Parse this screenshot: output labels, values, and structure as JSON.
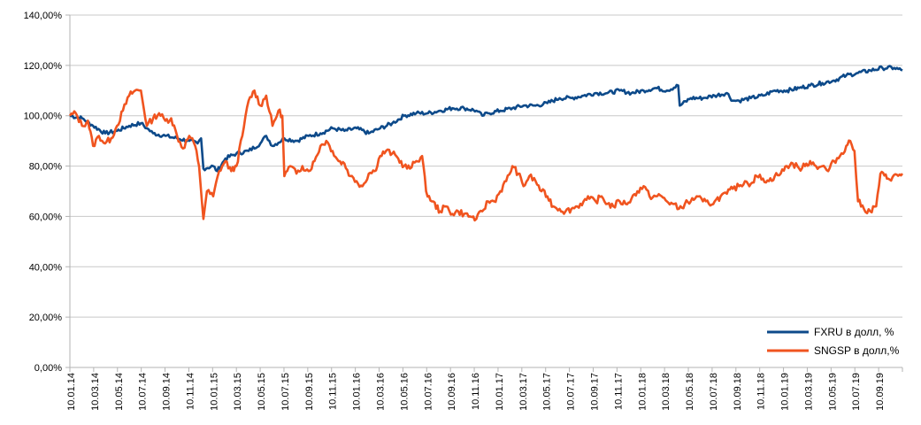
{
  "chart_data": {
    "type": "line",
    "title": "",
    "xlabel": "",
    "ylabel": "",
    "ylim": [
      0,
      140
    ],
    "y_tick_values": [
      0,
      20,
      40,
      60,
      80,
      100,
      120,
      140
    ],
    "y_tick_labels": [
      "0,00%",
      "20,00%",
      "40,00%",
      "60,00%",
      "80,00%",
      "100,00%",
      "120,00%",
      "140,00%"
    ],
    "x_tick_labels": [
      "10.01.14",
      "10.03.14",
      "10.05.14",
      "10.07.14",
      "10.09.14",
      "10.11.14",
      "10.01.15",
      "10.03.15",
      "10.05.15",
      "10.07.15",
      "10.09.15",
      "10.11.15",
      "10.01.16",
      "10.03.16",
      "10.05.16",
      "10.07.16",
      "10.09.16",
      "10.11.16",
      "10.01.17",
      "10.03.17",
      "10.05.17",
      "10.07.17",
      "10.09.17",
      "10.11.17",
      "10.01.18",
      "10.03.18",
      "10.05.18",
      "10.07.18",
      "10.09.18",
      "10.11.18",
      "10.01.19",
      "10.03.19",
      "10.05.19",
      "10.07.19",
      "10.09.19"
    ],
    "x_range": [
      "2014-01-10",
      "2019-10-31"
    ],
    "grid": "horizontal",
    "legend_position": "bottom-right",
    "series": [
      {
        "name": "FXRU в долл, %",
        "color": "#0d4a8a",
        "points": [
          [
            "2014-01-10",
            100
          ],
          [
            "2014-02-10",
            99
          ],
          [
            "2014-03-10",
            96
          ],
          [
            "2014-04-10",
            93
          ],
          [
            "2014-05-10",
            94
          ],
          [
            "2014-06-10",
            96
          ],
          [
            "2014-07-10",
            97
          ],
          [
            "2014-07-25",
            95
          ],
          [
            "2014-08-10",
            93
          ],
          [
            "2014-09-10",
            92
          ],
          [
            "2014-10-10",
            91
          ],
          [
            "2014-11-10",
            90
          ],
          [
            "2014-12-01",
            89
          ],
          [
            "2014-12-10",
            91
          ],
          [
            "2014-12-16",
            79
          ],
          [
            "2015-01-10",
            80
          ],
          [
            "2015-01-20",
            78
          ],
          [
            "2015-02-10",
            83
          ],
          [
            "2015-03-10",
            85
          ],
          [
            "2015-04-10",
            86
          ],
          [
            "2015-05-10",
            89
          ],
          [
            "2015-05-25",
            92
          ],
          [
            "2015-06-10",
            88
          ],
          [
            "2015-07-10",
            91
          ],
          [
            "2015-08-10",
            90
          ],
          [
            "2015-09-10",
            92
          ],
          [
            "2015-10-10",
            93
          ],
          [
            "2015-11-10",
            95
          ],
          [
            "2015-12-10",
            94
          ],
          [
            "2016-01-10",
            95
          ],
          [
            "2016-02-10",
            93
          ],
          [
            "2016-03-10",
            95
          ],
          [
            "2016-04-10",
            97
          ],
          [
            "2016-05-10",
            100
          ],
          [
            "2016-06-10",
            101
          ],
          [
            "2016-07-10",
            101
          ],
          [
            "2016-08-10",
            102
          ],
          [
            "2016-09-10",
            103
          ],
          [
            "2016-10-10",
            103
          ],
          [
            "2016-11-10",
            102
          ],
          [
            "2016-11-25",
            100
          ],
          [
            "2016-12-10",
            101
          ],
          [
            "2017-01-10",
            102
          ],
          [
            "2017-02-10",
            103
          ],
          [
            "2017-03-10",
            104
          ],
          [
            "2017-04-10",
            104
          ],
          [
            "2017-05-10",
            105
          ],
          [
            "2017-06-10",
            107
          ],
          [
            "2017-07-10",
            107
          ],
          [
            "2017-08-10",
            108
          ],
          [
            "2017-09-10",
            109
          ],
          [
            "2017-10-10",
            109
          ],
          [
            "2017-11-10",
            110
          ],
          [
            "2017-12-10",
            109
          ],
          [
            "2018-01-10",
            110
          ],
          [
            "2018-02-10",
            111
          ],
          [
            "2018-03-10",
            110
          ],
          [
            "2018-04-08",
            112
          ],
          [
            "2018-04-12",
            104
          ],
          [
            "2018-05-10",
            107
          ],
          [
            "2018-06-10",
            107
          ],
          [
            "2018-07-10",
            108
          ],
          [
            "2018-08-10",
            109
          ],
          [
            "2018-08-25",
            106
          ],
          [
            "2018-09-10",
            106
          ],
          [
            "2018-10-10",
            107
          ],
          [
            "2018-11-10",
            108
          ],
          [
            "2018-12-10",
            110
          ],
          [
            "2019-01-10",
            110
          ],
          [
            "2019-02-10",
            111
          ],
          [
            "2019-03-10",
            112
          ],
          [
            "2019-04-10",
            113
          ],
          [
            "2019-05-10",
            114
          ],
          [
            "2019-06-10",
            116
          ],
          [
            "2019-07-10",
            117
          ],
          [
            "2019-08-10",
            118
          ],
          [
            "2019-09-10",
            119
          ],
          [
            "2019-10-10",
            119
          ],
          [
            "2019-10-31",
            118
          ]
        ]
      },
      {
        "name": "SNGSP в долл,%",
        "color": "#f0541f",
        "points": [
          [
            "2014-01-10",
            100
          ],
          [
            "2014-01-25",
            101
          ],
          [
            "2014-02-10",
            96
          ],
          [
            "2014-02-25",
            98
          ],
          [
            "2014-03-10",
            88
          ],
          [
            "2014-03-25",
            92
          ],
          [
            "2014-04-10",
            89
          ],
          [
            "2014-04-25",
            91
          ],
          [
            "2014-05-10",
            96
          ],
          [
            "2014-05-25",
            102
          ],
          [
            "2014-06-10",
            108
          ],
          [
            "2014-06-25",
            110
          ],
          [
            "2014-07-10",
            110
          ],
          [
            "2014-07-25",
            96
          ],
          [
            "2014-08-10",
            99
          ],
          [
            "2014-08-25",
            101
          ],
          [
            "2014-09-10",
            98
          ],
          [
            "2014-09-25",
            99
          ],
          [
            "2014-10-10",
            92
          ],
          [
            "2014-10-25",
            87
          ],
          [
            "2014-11-10",
            92
          ],
          [
            "2014-11-25",
            88
          ],
          [
            "2014-12-05",
            80
          ],
          [
            "2014-12-16",
            59
          ],
          [
            "2014-12-25",
            70
          ],
          [
            "2015-01-10",
            68
          ],
          [
            "2015-01-25",
            78
          ],
          [
            "2015-02-10",
            82
          ],
          [
            "2015-02-25",
            78
          ],
          [
            "2015-03-10",
            80
          ],
          [
            "2015-03-25",
            92
          ],
          [
            "2015-04-10",
            106
          ],
          [
            "2015-04-25",
            110
          ],
          [
            "2015-05-10",
            104
          ],
          [
            "2015-05-25",
            108
          ],
          [
            "2015-06-10",
            96
          ],
          [
            "2015-06-25",
            102
          ],
          [
            "2015-07-05",
            100
          ],
          [
            "2015-07-10",
            76
          ],
          [
            "2015-07-25",
            80
          ],
          [
            "2015-08-10",
            77
          ],
          [
            "2015-08-25",
            80
          ],
          [
            "2015-09-10",
            78
          ],
          [
            "2015-09-25",
            82
          ],
          [
            "2015-10-10",
            88
          ],
          [
            "2015-10-25",
            90
          ],
          [
            "2015-11-10",
            86
          ],
          [
            "2015-11-25",
            82
          ],
          [
            "2015-12-10",
            81
          ],
          [
            "2015-12-25",
            76
          ],
          [
            "2016-01-10",
            74
          ],
          [
            "2016-01-25",
            72
          ],
          [
            "2016-02-10",
            77
          ],
          [
            "2016-02-25",
            78
          ],
          [
            "2016-03-10",
            84
          ],
          [
            "2016-03-25",
            86
          ],
          [
            "2016-04-10",
            85
          ],
          [
            "2016-04-25",
            83
          ],
          [
            "2016-05-10",
            80
          ],
          [
            "2016-05-25",
            79
          ],
          [
            "2016-06-10",
            82
          ],
          [
            "2016-06-25",
            84
          ],
          [
            "2016-07-05",
            70
          ],
          [
            "2016-07-20",
            66
          ],
          [
            "2016-08-10",
            62
          ],
          [
            "2016-08-25",
            64
          ],
          [
            "2016-09-10",
            61
          ],
          [
            "2016-09-25",
            62
          ],
          [
            "2016-10-10",
            61
          ],
          [
            "2016-10-25",
            60
          ],
          [
            "2016-11-10",
            59
          ],
          [
            "2016-11-25",
            62
          ],
          [
            "2016-12-10",
            66
          ],
          [
            "2016-12-25",
            66
          ],
          [
            "2017-01-10",
            70
          ],
          [
            "2017-01-25",
            74
          ],
          [
            "2017-02-10",
            80
          ],
          [
            "2017-02-25",
            77
          ],
          [
            "2017-03-10",
            72
          ],
          [
            "2017-03-25",
            76
          ],
          [
            "2017-04-10",
            74
          ],
          [
            "2017-04-25",
            70
          ],
          [
            "2017-05-10",
            68
          ],
          [
            "2017-05-25",
            64
          ],
          [
            "2017-06-10",
            63
          ],
          [
            "2017-06-25",
            62
          ],
          [
            "2017-07-10",
            63
          ],
          [
            "2017-07-25",
            64
          ],
          [
            "2017-08-10",
            66
          ],
          [
            "2017-08-25",
            67
          ],
          [
            "2017-09-10",
            66
          ],
          [
            "2017-09-25",
            68
          ],
          [
            "2017-10-10",
            65
          ],
          [
            "2017-10-25",
            64
          ],
          [
            "2017-11-10",
            66
          ],
          [
            "2017-11-25",
            65
          ],
          [
            "2017-12-10",
            67
          ],
          [
            "2017-12-25",
            70
          ],
          [
            "2018-01-10",
            72
          ],
          [
            "2018-01-25",
            68
          ],
          [
            "2018-02-10",
            68
          ],
          [
            "2018-02-25",
            68
          ],
          [
            "2018-03-10",
            66
          ],
          [
            "2018-03-25",
            65
          ],
          [
            "2018-04-10",
            63
          ],
          [
            "2018-04-25",
            65
          ],
          [
            "2018-05-10",
            66
          ],
          [
            "2018-05-25",
            68
          ],
          [
            "2018-06-10",
            66
          ],
          [
            "2018-06-25",
            65
          ],
          [
            "2018-07-10",
            66
          ],
          [
            "2018-07-25",
            68
          ],
          [
            "2018-08-10",
            69
          ],
          [
            "2018-08-25",
            71
          ],
          [
            "2018-09-10",
            72
          ],
          [
            "2018-09-25",
            74
          ],
          [
            "2018-10-10",
            73
          ],
          [
            "2018-10-25",
            76
          ],
          [
            "2018-11-10",
            75
          ],
          [
            "2018-11-25",
            74
          ],
          [
            "2018-12-10",
            76
          ],
          [
            "2018-12-25",
            77
          ],
          [
            "2019-01-10",
            80
          ],
          [
            "2019-01-25",
            81
          ],
          [
            "2019-02-10",
            79
          ],
          [
            "2019-02-25",
            80
          ],
          [
            "2019-03-10",
            82
          ],
          [
            "2019-03-25",
            80
          ],
          [
            "2019-04-10",
            80
          ],
          [
            "2019-04-25",
            78
          ],
          [
            "2019-05-10",
            82
          ],
          [
            "2019-05-25",
            84
          ],
          [
            "2019-06-10",
            88
          ],
          [
            "2019-06-20",
            90
          ],
          [
            "2019-07-01",
            86
          ],
          [
            "2019-07-10",
            66
          ],
          [
            "2019-07-25",
            63
          ],
          [
            "2019-08-10",
            62
          ],
          [
            "2019-08-25",
            64
          ],
          [
            "2019-09-05",
            77
          ],
          [
            "2019-09-25",
            75
          ],
          [
            "2019-10-31",
            77
          ]
        ]
      }
    ]
  }
}
